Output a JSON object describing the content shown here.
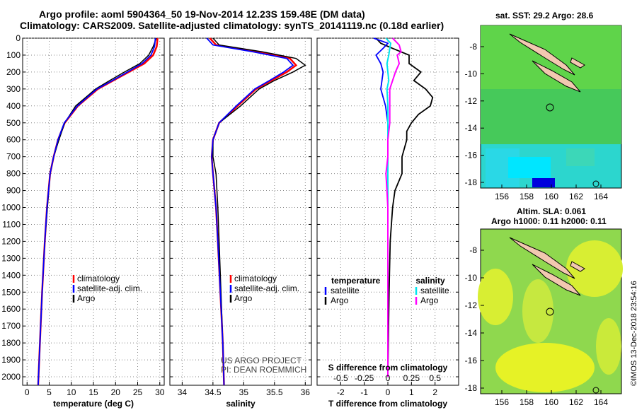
{
  "header": {
    "line1": "Argo profile: aoml 5904364_50 19-Nov-2014 12.23S 159.48E (DM data)",
    "line2": "Climatology: CARS2009. Satellite-adjusted climatology: synTS_20141119.nc (0.18d earlier)"
  },
  "colors": {
    "climatology": "#ff0000",
    "satellite": "#0000ff",
    "argo": "#000000",
    "sat_salinity": "#00e5ee",
    "clim_salinity": "#ff00ff"
  },
  "chart_data": [
    {
      "type": "line",
      "title": "",
      "xlabel": "temperature (deg C)",
      "ylabel": "",
      "xlim": [
        -1,
        31
      ],
      "ylim": [
        0,
        2050
      ],
      "xticks": [
        0,
        5,
        10,
        15,
        20,
        25,
        30
      ],
      "yticks": [
        0,
        100,
        200,
        300,
        400,
        500,
        600,
        700,
        800,
        900,
        1000,
        1100,
        1200,
        1300,
        1400,
        1500,
        1600,
        1700,
        1800,
        1900,
        2000
      ],
      "legend": [
        "climatology",
        "satellite-adj. clim.",
        "Argo"
      ],
      "series": [
        {
          "name": "climatology",
          "depth": [
            0,
            50,
            100,
            150,
            200,
            250,
            300,
            400,
            500,
            600,
            700,
            800,
            1000,
            1200,
            1500,
            1800,
            2050
          ],
          "values": [
            29.5,
            29.3,
            28.5,
            26.5,
            23.0,
            19.5,
            16.0,
            11.5,
            8.5,
            7.0,
            6.0,
            5.2,
            4.5,
            4.0,
            3.4,
            2.9,
            2.5
          ]
        },
        {
          "name": "satellite-adj. clim.",
          "depth": [
            0,
            50,
            100,
            150,
            200,
            250,
            300,
            400,
            500,
            600,
            700,
            800,
            1000,
            1200,
            1500,
            1800,
            2050
          ],
          "values": [
            29.0,
            28.8,
            28.0,
            26.0,
            22.7,
            19.3,
            15.8,
            11.4,
            8.4,
            7.0,
            6.0,
            5.2,
            4.5,
            4.0,
            3.4,
            2.9,
            2.5
          ]
        },
        {
          "name": "Argo",
          "depth": [
            0,
            50,
            100,
            150,
            200,
            250,
            300,
            400,
            500,
            600,
            700,
            800,
            1000,
            1200,
            1500,
            1800,
            2050
          ],
          "values": [
            29.2,
            28.5,
            27.5,
            25.5,
            22.0,
            18.7,
            15.5,
            11.0,
            8.5,
            7.2,
            6.0,
            5.2,
            4.6,
            4.0,
            3.4,
            2.9,
            2.5
          ]
        }
      ]
    },
    {
      "type": "line",
      "xlabel": "salinity",
      "xlim": [
        33.8,
        36.1
      ],
      "ylim": [
        0,
        2050
      ],
      "xticks": [
        34,
        34.5,
        35,
        35.5,
        36
      ],
      "legend": [
        "climatology",
        "satellite-adj. clim.",
        "Argo"
      ],
      "annotation": [
        "US ARGO PROJECT",
        "PI: DEAN ROEMMICH"
      ],
      "series": [
        {
          "name": "climatology",
          "depth": [
            0,
            40,
            80,
            120,
            160,
            200,
            250,
            300,
            400,
            500,
            600,
            700,
            800,
            1000,
            1200,
            1500,
            1800,
            2050
          ],
          "values": [
            34.45,
            34.55,
            35.2,
            35.75,
            35.85,
            35.7,
            35.45,
            35.2,
            34.9,
            34.6,
            34.5,
            34.48,
            34.5,
            34.55,
            34.58,
            34.62,
            34.66,
            34.68
          ]
        },
        {
          "name": "satellite-adj. clim.",
          "depth": [
            0,
            40,
            80,
            120,
            160,
            200,
            250,
            300,
            400,
            500,
            600,
            700,
            800,
            1000,
            1200,
            1500,
            1800,
            2050
          ],
          "values": [
            34.4,
            34.5,
            35.15,
            35.7,
            35.8,
            35.65,
            35.42,
            35.18,
            34.88,
            34.6,
            34.5,
            34.48,
            34.5,
            34.55,
            34.58,
            34.62,
            34.66,
            34.68
          ]
        },
        {
          "name": "Argo",
          "depth": [
            0,
            40,
            80,
            120,
            160,
            200,
            250,
            300,
            400,
            500,
            600,
            700,
            800,
            1000,
            1200,
            1500,
            1800,
            2050
          ],
          "values": [
            34.5,
            34.6,
            35.3,
            35.85,
            36.0,
            35.8,
            35.5,
            35.25,
            34.95,
            34.6,
            34.5,
            34.5,
            34.55,
            34.58,
            34.6,
            34.63,
            34.66,
            34.68
          ]
        }
      ]
    },
    {
      "type": "line",
      "xlabel": "T difference from climatology",
      "xlabel_top": "S difference from climatology",
      "xlim": [
        -3,
        3
      ],
      "ylim": [
        0,
        2050
      ],
      "xticks": [
        -2,
        -1,
        0,
        1,
        2
      ],
      "xticks_top": [
        "-0.5",
        "-0.25",
        "0",
        "0.25",
        "0.5"
      ],
      "legend_temperature": {
        "heading": "temperature",
        "entries": [
          "satellite",
          "Argo"
        ]
      },
      "legend_salinity": {
        "heading": "salinity",
        "entries": [
          "satellite",
          "Argo"
        ]
      },
      "series": [
        {
          "name": "T satellite",
          "depth": [
            0,
            30,
            60,
            100,
            150,
            200,
            300,
            400,
            500,
            600,
            800,
            1000,
            1500,
            2000
          ],
          "values": [
            -0.6,
            0,
            -0.2,
            -0.5,
            -0.3,
            -0.2,
            -0.3,
            -0.1,
            0,
            0,
            0,
            0,
            0,
            0
          ]
        },
        {
          "name": "T Argo",
          "depth": [
            0,
            30,
            60,
            100,
            150,
            200,
            250,
            300,
            350,
            400,
            450,
            500,
            550,
            600,
            700,
            800,
            900,
            1000,
            1200,
            1500,
            2000
          ],
          "values": [
            -0.5,
            -0.3,
            0.2,
            0.9,
            0.9,
            1.4,
            1.1,
            1.6,
            1.9,
            1.8,
            1.3,
            1.0,
            0.8,
            0.8,
            0.6,
            0.6,
            0.3,
            0.2,
            0.1,
            0.05,
            0
          ]
        },
        {
          "name": "S satellite",
          "depth": [
            0,
            30,
            60,
            100,
            150,
            200,
            250,
            300,
            400,
            500,
            600,
            800,
            1000,
            1500,
            2000
          ],
          "values": [
            -0.02,
            0.03,
            0.02,
            0.01,
            -0.01,
            0,
            0.01,
            -0.01,
            0,
            0,
            0,
            0,
            0,
            0,
            0
          ]
        },
        {
          "name": "S Argo",
          "depth": [
            0,
            40,
            80,
            100,
            150,
            200,
            250,
            300,
            400,
            500,
            600,
            700,
            800,
            900,
            1000,
            1200,
            1500,
            1800,
            2000
          ],
          "values": [
            0.05,
            0.12,
            0.14,
            0.1,
            0.12,
            0.08,
            0.05,
            0.02,
            0.02,
            0.02,
            0,
            0,
            -0.02,
            -0.01,
            0,
            0,
            0,
            0,
            0
          ]
        }
      ]
    }
  ],
  "maps": {
    "sst_title": "sat. SST: 29.2 Argo: 28.6",
    "sla_title_1": "Altim. SLA: 0.061",
    "sla_title_2": "Argo h1000: 0.11 h2000: 0.11",
    "lat_ticks": [
      "-8",
      "-10",
      "-12",
      "-14",
      "-16",
      "-18"
    ],
    "lon_ticks": [
      "156",
      "158",
      "160",
      "162",
      "164"
    ]
  },
  "footer": {
    "stamp": "©IMOS 13-Dec-2018 23:54:16"
  }
}
